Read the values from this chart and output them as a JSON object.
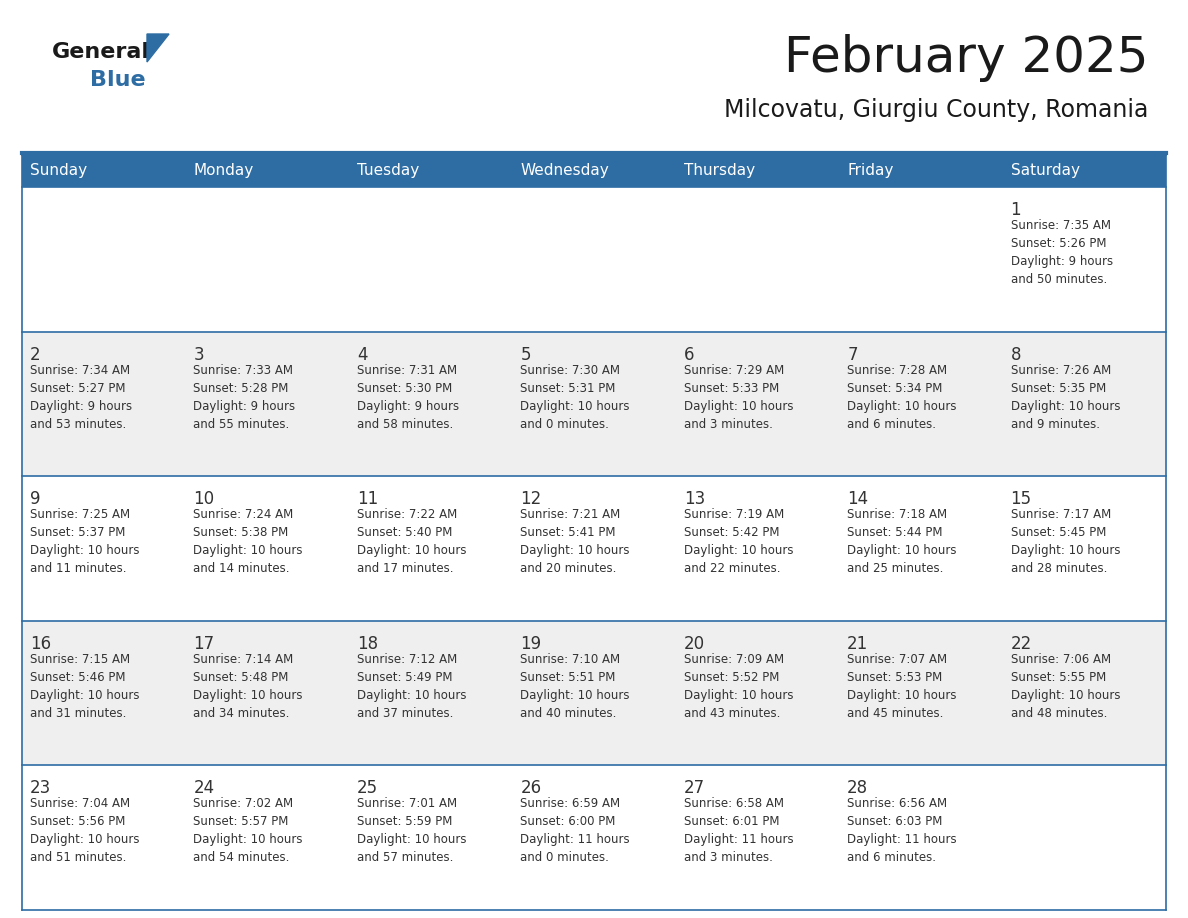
{
  "title": "February 2025",
  "subtitle": "Milcovatu, Giurgiu County, Romania",
  "days_of_week": [
    "Sunday",
    "Monday",
    "Tuesday",
    "Wednesday",
    "Thursday",
    "Friday",
    "Saturday"
  ],
  "header_bg": "#2E6DA4",
  "header_text": "#FFFFFF",
  "cell_bg_odd": "#EFEFEF",
  "cell_bg_even": "#FFFFFF",
  "cell_text": "#333333",
  "day_num_color": "#333333",
  "grid_line_color": "#2E6DA4",
  "title_color": "#1a1a1a",
  "subtitle_color": "#1a1a1a",
  "logo_general_color": "#1a1a1a",
  "logo_blue_color": "#2E6DA4",
  "weeks": [
    [
      {
        "day": null,
        "info": null
      },
      {
        "day": null,
        "info": null
      },
      {
        "day": null,
        "info": null
      },
      {
        "day": null,
        "info": null
      },
      {
        "day": null,
        "info": null
      },
      {
        "day": null,
        "info": null
      },
      {
        "day": 1,
        "info": "Sunrise: 7:35 AM\nSunset: 5:26 PM\nDaylight: 9 hours\nand 50 minutes."
      }
    ],
    [
      {
        "day": 2,
        "info": "Sunrise: 7:34 AM\nSunset: 5:27 PM\nDaylight: 9 hours\nand 53 minutes."
      },
      {
        "day": 3,
        "info": "Sunrise: 7:33 AM\nSunset: 5:28 PM\nDaylight: 9 hours\nand 55 minutes."
      },
      {
        "day": 4,
        "info": "Sunrise: 7:31 AM\nSunset: 5:30 PM\nDaylight: 9 hours\nand 58 minutes."
      },
      {
        "day": 5,
        "info": "Sunrise: 7:30 AM\nSunset: 5:31 PM\nDaylight: 10 hours\nand 0 minutes."
      },
      {
        "day": 6,
        "info": "Sunrise: 7:29 AM\nSunset: 5:33 PM\nDaylight: 10 hours\nand 3 minutes."
      },
      {
        "day": 7,
        "info": "Sunrise: 7:28 AM\nSunset: 5:34 PM\nDaylight: 10 hours\nand 6 minutes."
      },
      {
        "day": 8,
        "info": "Sunrise: 7:26 AM\nSunset: 5:35 PM\nDaylight: 10 hours\nand 9 minutes."
      }
    ],
    [
      {
        "day": 9,
        "info": "Sunrise: 7:25 AM\nSunset: 5:37 PM\nDaylight: 10 hours\nand 11 minutes."
      },
      {
        "day": 10,
        "info": "Sunrise: 7:24 AM\nSunset: 5:38 PM\nDaylight: 10 hours\nand 14 minutes."
      },
      {
        "day": 11,
        "info": "Sunrise: 7:22 AM\nSunset: 5:40 PM\nDaylight: 10 hours\nand 17 minutes."
      },
      {
        "day": 12,
        "info": "Sunrise: 7:21 AM\nSunset: 5:41 PM\nDaylight: 10 hours\nand 20 minutes."
      },
      {
        "day": 13,
        "info": "Sunrise: 7:19 AM\nSunset: 5:42 PM\nDaylight: 10 hours\nand 22 minutes."
      },
      {
        "day": 14,
        "info": "Sunrise: 7:18 AM\nSunset: 5:44 PM\nDaylight: 10 hours\nand 25 minutes."
      },
      {
        "day": 15,
        "info": "Sunrise: 7:17 AM\nSunset: 5:45 PM\nDaylight: 10 hours\nand 28 minutes."
      }
    ],
    [
      {
        "day": 16,
        "info": "Sunrise: 7:15 AM\nSunset: 5:46 PM\nDaylight: 10 hours\nand 31 minutes."
      },
      {
        "day": 17,
        "info": "Sunrise: 7:14 AM\nSunset: 5:48 PM\nDaylight: 10 hours\nand 34 minutes."
      },
      {
        "day": 18,
        "info": "Sunrise: 7:12 AM\nSunset: 5:49 PM\nDaylight: 10 hours\nand 37 minutes."
      },
      {
        "day": 19,
        "info": "Sunrise: 7:10 AM\nSunset: 5:51 PM\nDaylight: 10 hours\nand 40 minutes."
      },
      {
        "day": 20,
        "info": "Sunrise: 7:09 AM\nSunset: 5:52 PM\nDaylight: 10 hours\nand 43 minutes."
      },
      {
        "day": 21,
        "info": "Sunrise: 7:07 AM\nSunset: 5:53 PM\nDaylight: 10 hours\nand 45 minutes."
      },
      {
        "day": 22,
        "info": "Sunrise: 7:06 AM\nSunset: 5:55 PM\nDaylight: 10 hours\nand 48 minutes."
      }
    ],
    [
      {
        "day": 23,
        "info": "Sunrise: 7:04 AM\nSunset: 5:56 PM\nDaylight: 10 hours\nand 51 minutes."
      },
      {
        "day": 24,
        "info": "Sunrise: 7:02 AM\nSunset: 5:57 PM\nDaylight: 10 hours\nand 54 minutes."
      },
      {
        "day": 25,
        "info": "Sunrise: 7:01 AM\nSunset: 5:59 PM\nDaylight: 10 hours\nand 57 minutes."
      },
      {
        "day": 26,
        "info": "Sunrise: 6:59 AM\nSunset: 6:00 PM\nDaylight: 11 hours\nand 0 minutes."
      },
      {
        "day": 27,
        "info": "Sunrise: 6:58 AM\nSunset: 6:01 PM\nDaylight: 11 hours\nand 3 minutes."
      },
      {
        "day": 28,
        "info": "Sunrise: 6:56 AM\nSunset: 6:03 PM\nDaylight: 11 hours\nand 6 minutes."
      },
      {
        "day": null,
        "info": null
      }
    ]
  ],
  "figsize": [
    11.88,
    9.18
  ],
  "dpi": 100
}
